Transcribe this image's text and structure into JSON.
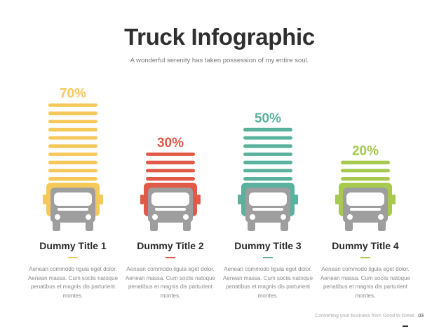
{
  "title": "Truck Infographic",
  "subtitle": "A wonderful serenity has taken possession of my entire soul.",
  "footer": {
    "text": "Converting your business from Good to Great.",
    "page": "03"
  },
  "icons": {
    "vehicle": "truck-icon"
  },
  "chart_data": {
    "type": "bar",
    "categories": [
      "Dummy Title 1",
      "Dummy Title 2",
      "Dummy Title 3",
      "Dummy Title 4"
    ],
    "values": [
      70,
      30,
      50,
      20
    ],
    "value_labels": [
      "70%",
      "30%",
      "50%",
      "20%"
    ],
    "colors": [
      "#F5C85A",
      "#E05A47",
      "#5AB29E",
      "#A6C94E"
    ],
    "title": "Truck Infographic",
    "ylim": [
      0,
      100
    ],
    "grid": false,
    "legend": "none"
  },
  "columns": [
    {
      "title": "Dummy Title 1",
      "body": "Aenean commodo ligula eget dolor. Aenean massa. Cum sociis natoque penatibus et magnis dis parturient montes."
    },
    {
      "title": "Dummy Title 2",
      "body": "Aenean commodo ligula eget dolor. Aenean massa. Cum sociis natoque penatibus et magnis dis parturient montes."
    },
    {
      "title": "Dummy Title 3",
      "body": "Aenean commodo ligula eget dolor. Aenean massa. Cum sociis natoque penatibus et magnis dis parturient montes."
    },
    {
      "title": "Dummy Title 4",
      "body": "Aenean commodo ligula eget dolor. Aenean massa. Cum sociis natoque penatibus et magnis dis parturient montes."
    }
  ]
}
